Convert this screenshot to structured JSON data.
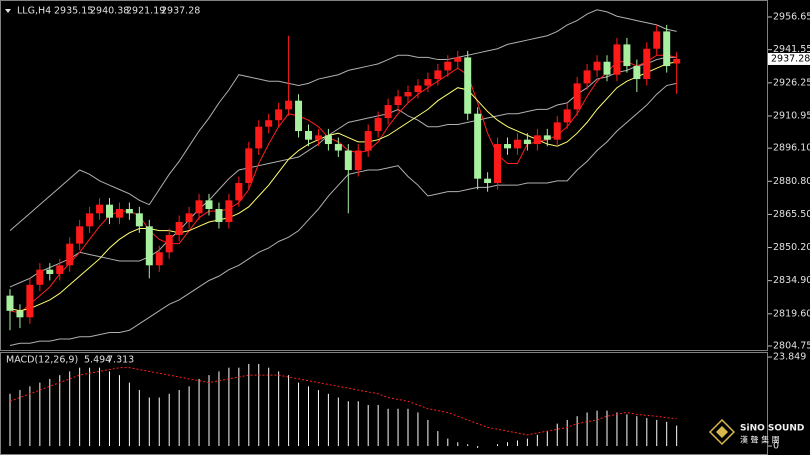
{
  "chart_data": [
    {
      "type": "candlestick",
      "title": "LLG,H4",
      "categories": [
        null,
        null,
        null,
        null,
        null,
        null,
        null,
        null,
        null,
        null,
        null,
        null,
        null,
        null,
        null,
        null,
        null,
        null,
        null,
        null,
        null,
        null,
        null,
        null,
        null,
        null,
        null,
        null,
        null,
        null,
        null,
        null,
        null,
        null,
        null,
        null,
        null,
        null,
        null,
        null,
        null,
        null,
        null,
        null,
        null,
        null,
        null,
        null,
        null,
        null,
        null,
        null,
        null,
        null,
        null,
        null,
        null,
        null,
        null,
        null,
        null,
        null,
        null,
        null,
        null,
        null,
        null,
        null
      ],
      "open": [
        2828,
        2821,
        2818,
        2833,
        2840,
        2838,
        2842,
        2852,
        2860,
        2866,
        2870,
        2864,
        2868,
        2866,
        2860,
        2842,
        2848,
        2856,
        2862,
        2866,
        2872,
        2868,
        2862,
        2872,
        2880,
        2896,
        2906,
        2909,
        2914,
        2918,
        2904,
        2900,
        2902,
        2898,
        2895,
        2886,
        2895,
        2904,
        2910,
        2916,
        2920,
        2922,
        2925,
        2928,
        2932,
        2936,
        2938,
        2912,
        2882,
        2880,
        2898,
        2896,
        2900,
        2898,
        2902,
        2900,
        2908,
        2914,
        2926,
        2932,
        2936,
        2930,
        2944,
        2934,
        2928,
        2942,
        2950,
        2935.15
      ],
      "high": [
        2831,
        2824,
        2836,
        2843,
        2843,
        2845,
        2855,
        2863,
        2869,
        2873,
        2873,
        2871,
        2871,
        2869,
        2863,
        2851,
        2859,
        2865,
        2869,
        2875,
        2875,
        2871,
        2875,
        2883,
        2899,
        2909,
        2912,
        2917,
        2948,
        2921,
        2907,
        2905,
        2905,
        2901,
        2898,
        2898,
        2907,
        2913,
        2919,
        2923,
        2925,
        2928,
        2931,
        2935,
        2939,
        2941,
        2941,
        2915,
        2885,
        2901,
        2901,
        2903,
        2903,
        2905,
        2905,
        2911,
        2917,
        2929,
        2935,
        2939,
        2939,
        2947,
        2947,
        2937,
        2945,
        2953,
        2953,
        2940.38
      ],
      "low": [
        2812,
        2813,
        2815,
        2830,
        2835,
        2835,
        2839,
        2849,
        2857,
        2863,
        2861,
        2861,
        2863,
        2857,
        2836,
        2839,
        2845,
        2853,
        2859,
        2863,
        2865,
        2859,
        2859,
        2869,
        2877,
        2893,
        2903,
        2906,
        2911,
        2901,
        2897,
        2897,
        2895,
        2892,
        2866,
        2883,
        2892,
        2901,
        2907,
        2913,
        2917,
        2919,
        2922,
        2925,
        2929,
        2933,
        2909,
        2877,
        2876,
        2877,
        2893,
        2893,
        2895,
        2895,
        2897,
        2897,
        2905,
        2911,
        2923,
        2929,
        2927,
        2927,
        2931,
        2922,
        2925,
        2939,
        2931,
        2921.19
      ],
      "close": [
        2821,
        2818,
        2833,
        2840,
        2838,
        2842,
        2852,
        2860,
        2866,
        2870,
        2864,
        2868,
        2866,
        2860,
        2842,
        2848,
        2856,
        2862,
        2866,
        2872,
        2868,
        2862,
        2872,
        2880,
        2896,
        2906,
        2909,
        2914,
        2918,
        2904,
        2900,
        2902,
        2898,
        2895,
        2886,
        2895,
        2904,
        2910,
        2916,
        2920,
        2922,
        2925,
        2928,
        2932,
        2936,
        2938,
        2912,
        2882,
        2880,
        2898,
        2896,
        2900,
        2898,
        2902,
        2900,
        2908,
        2914,
        2926,
        2932,
        2936,
        2930,
        2944,
        2934,
        2928,
        2942,
        2950,
        2934,
        2937.28
      ],
      "up_color": "#ff1a1a",
      "down_color": "#a8f0a0",
      "overlays": [
        {
          "color": "#b0b0b0",
          "values": [
            2858,
            2862,
            2866,
            2870,
            2874,
            2878,
            2882,
            2886,
            2884,
            2881,
            2879,
            2877,
            2875,
            2872,
            2870,
            2877,
            2884,
            2890,
            2897,
            2904,
            2910,
            2917,
            2923,
            2930,
            2929,
            2928,
            2927,
            2927,
            2926,
            2925,
            2926,
            2928,
            2929,
            2930,
            2932,
            2933,
            2934,
            2935,
            2937,
            2939,
            2939,
            2938,
            2938,
            2937,
            2937,
            2938,
            2939,
            2940,
            2941,
            2942,
            2944,
            2945,
            2946,
            2947,
            2948,
            2950,
            2953,
            2955,
            2958,
            2960,
            2959,
            2957,
            2956,
            2955,
            2954,
            2953,
            2951,
            2950
          ]
        },
        {
          "color": "#b0b0b0",
          "values": [
            2832,
            2834,
            2836,
            2839,
            2841,
            2843,
            2845,
            2848,
            2847,
            2846,
            2845,
            2844,
            2844,
            2844,
            2846,
            2849,
            2854,
            2858,
            2863,
            2868,
            2872,
            2877,
            2882,
            2886,
            2887,
            2888,
            2889,
            2890,
            2891,
            2892,
            2895,
            2898,
            2902,
            2905,
            2908,
            2909,
            2910,
            2911,
            2912,
            2914,
            2911,
            2909,
            2906,
            2906,
            2907,
            2907,
            2908,
            2909,
            2910,
            2911,
            2912,
            2912,
            2913,
            2914,
            2914,
            2916,
            2917,
            2921,
            2924,
            2928,
            2929,
            2931,
            2932,
            2934,
            2935,
            2937,
            2938,
            2938
          ]
        },
        {
          "color": "#b0b0b0",
          "values": [
            2805,
            2806,
            2806,
            2807,
            2807,
            2808,
            2808,
            2809,
            2809,
            2810,
            2811,
            2811,
            2812,
            2815,
            2818,
            2821,
            2824,
            2826,
            2829,
            2832,
            2835,
            2837,
            2840,
            2842,
            2845,
            2848,
            2850,
            2853,
            2855,
            2858,
            2863,
            2868,
            2874,
            2879,
            2884,
            2885,
            2886,
            2886,
            2887,
            2888,
            2883,
            2879,
            2874,
            2875,
            2876,
            2876,
            2877,
            2878,
            2878,
            2879,
            2879,
            2879,
            2880,
            2880,
            2880,
            2881,
            2881,
            2886,
            2890,
            2895,
            2899,
            2904,
            2908,
            2912,
            2916,
            2921,
            2925,
            2926
          ]
        },
        {
          "color": "#ff2020",
          "values": [
            2821,
            2820,
            2824,
            2828,
            2832,
            2838,
            2843,
            2848,
            2854,
            2860,
            2865,
            2867,
            2867,
            2865,
            2858,
            2854,
            2852,
            2852,
            2858,
            2864,
            2867,
            2867,
            2868,
            2871,
            2877,
            2889,
            2898,
            2906,
            2912,
            2911,
            2909,
            2906,
            2901,
            2899,
            2895,
            2894,
            2895,
            2899,
            2906,
            2912,
            2917,
            2921,
            2924,
            2927,
            2930,
            2933,
            2930,
            2917,
            2903,
            2893,
            2889,
            2889,
            2898,
            2899,
            2900,
            2902,
            2906,
            2912,
            2920,
            2927,
            2931,
            2936,
            2936,
            2934,
            2936,
            2939,
            2939,
            2938
          ]
        },
        {
          "color": "#ffff70",
          "values": [
            2822,
            2821,
            2822,
            2824,
            2826,
            2829,
            2833,
            2837,
            2841,
            2845,
            2850,
            2854,
            2857,
            2859,
            2859,
            2858,
            2858,
            2857,
            2858,
            2860,
            2862,
            2863,
            2864,
            2866,
            2869,
            2874,
            2879,
            2885,
            2891,
            2895,
            2898,
            2900,
            2902,
            2903,
            2901,
            2899,
            2899,
            2900,
            2902,
            2905,
            2908,
            2911,
            2914,
            2918,
            2921,
            2924,
            2923,
            2918,
            2913,
            2909,
            2906,
            2904,
            2902,
            2900,
            2898,
            2897,
            2899,
            2903,
            2908,
            2914,
            2919,
            2924,
            2927,
            2929,
            2931,
            2933,
            2935,
            2936
          ]
        }
      ],
      "ylim": [
        2802.9,
        2964.5
      ],
      "yticks": [
        2956.65,
        2941.55,
        2926.25,
        2910.95,
        {
          "value": 2896.1,
          "label": "2896.10"
        },
        {
          "value": 2880.8,
          "label": "2880.80"
        },
        {
          "value": 2865.5,
          "label": "2865.50"
        },
        {
          "value": 2850.2,
          "label": "2850.20"
        },
        {
          "value": 2834.9,
          "label": "2834.90"
        },
        {
          "value": 2819.6,
          "label": "2819.60"
        },
        2804.75
      ]
    },
    {
      "type": "macd",
      "title": "MACD(12,26,9)",
      "histogram": {
        "color": "#ffffff",
        "values": [
          14,
          15,
          16,
          17,
          18,
          19,
          20,
          21,
          21,
          21,
          20,
          19,
          17,
          15,
          13,
          13,
          14,
          15,
          16,
          18,
          19,
          20,
          21,
          21,
          22,
          22,
          21,
          20,
          19,
          17,
          16,
          15,
          14,
          13,
          12,
          12,
          11,
          11,
          10,
          10,
          10,
          9,
          7,
          4,
          2,
          1,
          0.5,
          -0.5,
          0,
          0.5,
          1,
          1.5,
          2,
          3,
          4,
          6,
          7,
          8,
          9,
          9.5,
          9.5,
          9,
          8.5,
          8,
          7.5,
          7,
          6.5,
          5.494
        ]
      },
      "signal": {
        "color": "#ff2020",
        "values": [
          12,
          13,
          14,
          15,
          16,
          17,
          18,
          19,
          19.5,
          20,
          20.5,
          21,
          21,
          20.5,
          20,
          19.5,
          19,
          18.5,
          18,
          17.5,
          17,
          17.5,
          18,
          18.5,
          19,
          19,
          19,
          19,
          18.5,
          18,
          17.5,
          17,
          16.5,
          16,
          15.5,
          15,
          14.5,
          14,
          13,
          12.5,
          12,
          11,
          10,
          9.5,
          9,
          8,
          7,
          6,
          5,
          4.5,
          4,
          3.5,
          3,
          3.5,
          4,
          4.5,
          5,
          6,
          6.5,
          7,
          8,
          8.5,
          9,
          8.5,
          8.2,
          8,
          7.6,
          7.313
        ]
      },
      "ylim": [
        -2.4,
        25.2
      ],
      "yticks": [
        23.849,
        0
      ]
    }
  ],
  "watermark": {
    "brand": "SiNO SOUND",
    "chinese": "漢 聲 集 團"
  }
}
